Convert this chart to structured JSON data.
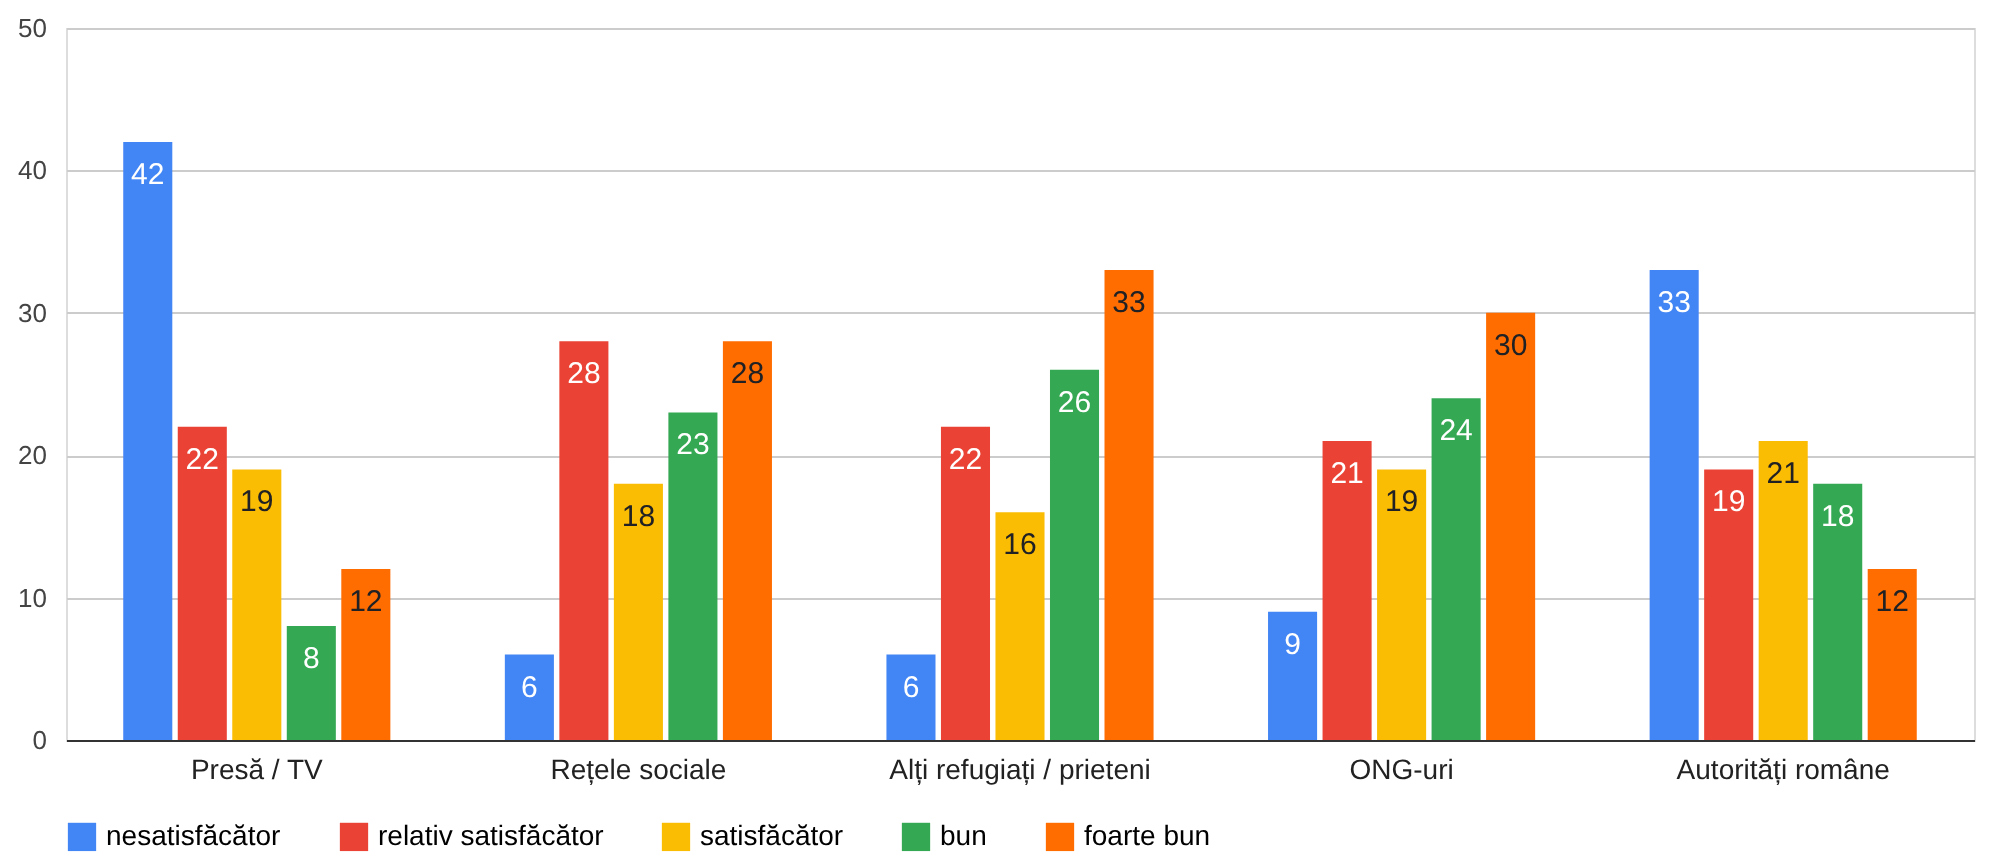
{
  "chart_data": {
    "type": "bar",
    "categories": [
      "Presă / TV",
      "Rețele sociale",
      "Alți refugiați / prieteni",
      "ONG-uri",
      "Autorități române"
    ],
    "series": [
      {
        "name": "nesatisfăcător",
        "color": "#4285f4",
        "values": [
          42,
          6,
          6,
          9,
          33
        ]
      },
      {
        "name": "relativ satisfăcător",
        "color": "#ea4335",
        "values": [
          22,
          28,
          22,
          21,
          19
        ]
      },
      {
        "name": "satisfăcător",
        "color": "#fbbc04",
        "values": [
          19,
          18,
          16,
          19,
          21
        ]
      },
      {
        "name": "bun",
        "color": "#34a853",
        "values": [
          8,
          23,
          26,
          24,
          18
        ]
      },
      {
        "name": "foarte bun",
        "color": "#ff6d01",
        "values": [
          12,
          28,
          33,
          30,
          12
        ]
      }
    ],
    "ylim": [
      0,
      50
    ],
    "yticks": [
      0,
      10,
      20,
      30,
      40,
      50
    ],
    "grid": "y",
    "legend": "bottom",
    "data_labels": true
  }
}
